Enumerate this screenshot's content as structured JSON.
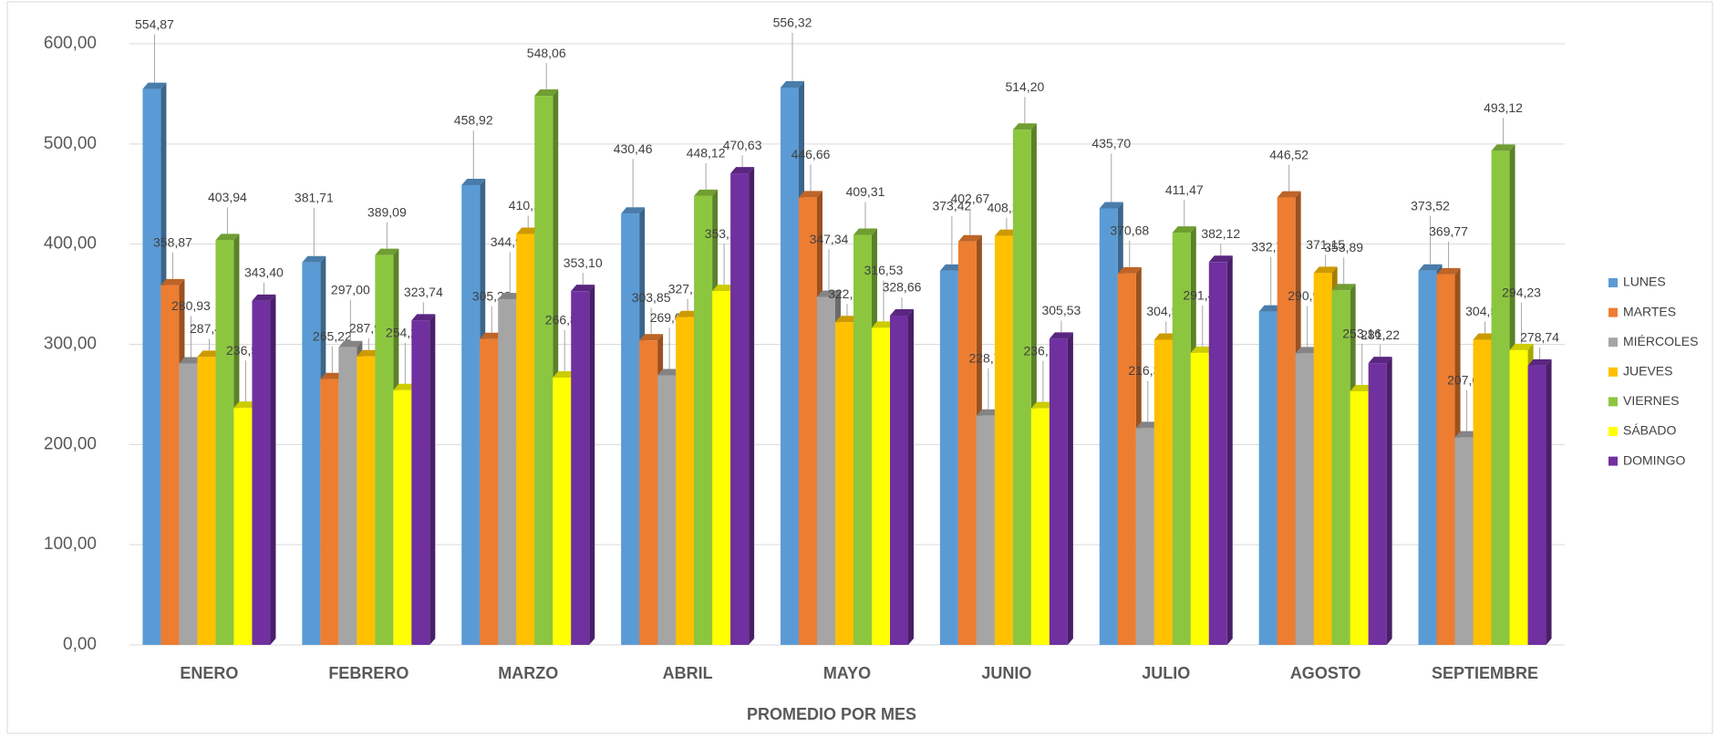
{
  "chart_data": {
    "type": "bar3d",
    "x_label": "PROMEDIO POR MES",
    "categories": [
      "ENERO",
      "FEBRERO",
      "MARZO",
      "ABRIL",
      "MAYO",
      "JUNIO",
      "JULIO",
      "AGOSTO",
      "SEPTIEMBRE"
    ],
    "series": [
      {
        "name": "LUNES",
        "color": "#5b9bd5",
        "values": [
          554.87,
          381.71,
          458.92,
          430.46,
          556.32,
          373.42,
          435.7,
          332.7,
          373.52
        ],
        "value_labels": [
          "554,87",
          "381,71",
          "458,92",
          "430,46",
          "556,32",
          "373,42",
          "435,70",
          "332,70",
          "373,52"
        ]
      },
      {
        "name": "MARTES",
        "color": "#ed7d31",
        "values": [
          358.87,
          265.22,
          305.28,
          303.85,
          446.66,
          402.67,
          370.68,
          446.52,
          369.77
        ],
        "value_labels": [
          "358,87",
          "265,22",
          "305,28",
          "303,85",
          "446,66",
          "402,67",
          "370,68",
          "446,52",
          "369,77"
        ]
      },
      {
        "name": "MIÉRCOLES",
        "color": "#a5a5a5",
        "values": [
          280.93,
          297.0,
          344.97,
          269.07,
          347.34,
          228.77,
          216.31,
          290.96,
          207.0
        ],
        "value_labels": [
          "280,93",
          "297,00",
          "344,97",
          "269,07",
          "347,34",
          "228,77",
          "216,31",
          "290,96",
          "207,00"
        ]
      },
      {
        "name": "JUEVES",
        "color": "#ffc000",
        "values": [
          287.41,
          287.94,
          410.14,
          327.1,
          322.11,
          408.26,
          304.59,
          371.15,
          304.51
        ],
        "value_labels": [
          "287,41",
          "287,94",
          "410,14",
          "327,10",
          "322,11",
          "408,26",
          "304,59",
          "371,15",
          "304,51"
        ]
      },
      {
        "name": "VIERNES",
        "color": "#8cc63f",
        "values": [
          403.94,
          389.09,
          548.06,
          448.12,
          409.31,
          514.2,
          411.47,
          353.89,
          493.12
        ],
        "value_labels": [
          "403,94",
          "389,09",
          "548,06",
          "448,12",
          "409,31",
          "514,20",
          "411,47",
          "353,89",
          "493,12"
        ]
      },
      {
        "name": "SÁBADO",
        "color": "#ffff00",
        "values": [
          236.56,
          254.24,
          266.8,
          353.18,
          316.53,
          236.1,
          291.46,
          253.16,
          294.23
        ],
        "value_labels": [
          "236,56",
          "254,24",
          "266,80",
          "353,18",
          "316,53",
          "236,10",
          "291,46",
          "253,16",
          "294,23"
        ]
      },
      {
        "name": "DOMINGO",
        "color": "#7030a0",
        "values": [
          343.4,
          323.74,
          353.1,
          470.63,
          328.66,
          305.53,
          382.12,
          281.22,
          278.74
        ],
        "value_labels": [
          "343,40",
          "323,74",
          "353,10",
          "470,63",
          "328,66",
          "305,53",
          "382,12",
          "281,22",
          "278,74"
        ]
      }
    ],
    "ylim": [
      0,
      600
    ],
    "yticks": [
      {
        "value": 0,
        "label": "0,00"
      },
      {
        "value": 100,
        "label": "100,00"
      },
      {
        "value": 200,
        "label": "200,00"
      },
      {
        "value": 300,
        "label": "300,00"
      },
      {
        "value": 400,
        "label": "400,00"
      },
      {
        "value": 500,
        "label": "500,00"
      },
      {
        "value": 600,
        "label": "600,00"
      }
    ],
    "grid": true,
    "legend": "right"
  }
}
